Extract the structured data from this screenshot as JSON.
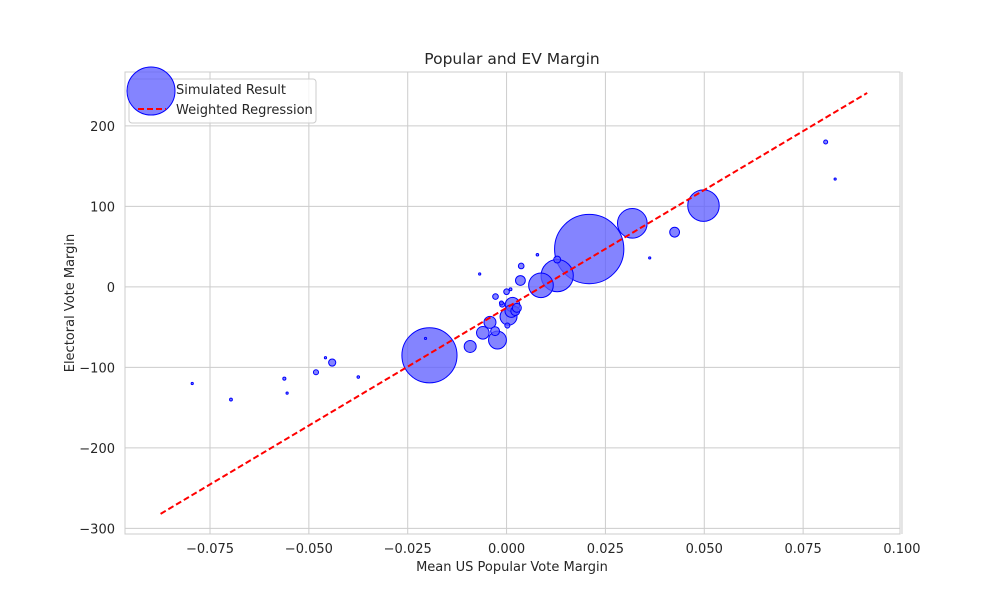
{
  "chart_data": {
    "type": "scatter",
    "title": "Popular and EV Margin",
    "xlabel": "Mean US Popular Vote Margin",
    "ylabel": "Electoral Vote Margin",
    "xlim": [
      -0.0965,
      0.0995
    ],
    "ylim": [
      -307,
      267
    ],
    "xticks": [
      -0.075,
      -0.05,
      -0.025,
      0.0,
      0.025,
      0.05,
      0.075,
      0.1
    ],
    "xtick_labels": [
      "−0.075",
      "−0.050",
      "−0.025",
      "0.000",
      "0.025",
      "0.050",
      "0.075",
      "0.100"
    ],
    "yticks": [
      -300,
      -200,
      -100,
      0,
      100,
      200
    ],
    "ytick_labels": [
      "−300",
      "−200",
      "−100",
      "0",
      "100",
      "200"
    ],
    "grid": true,
    "legend_position": "top-left",
    "colors": {
      "points_fill": "#5b5bff",
      "points_edge": "#0000ff",
      "regression": "#ff0000",
      "grid": "#cccccc",
      "axes_edge": "#cccccc",
      "text": "#262626"
    },
    "series": [
      {
        "name": "Simulated Result",
        "kind": "scatter",
        "points": [
          {
            "x": -0.0795,
            "y": -120,
            "weight": 0.3
          },
          {
            "x": -0.0697,
            "y": -140,
            "weight": 0.5
          },
          {
            "x": -0.0562,
            "y": -114,
            "weight": 0.6
          },
          {
            "x": -0.0555,
            "y": -132,
            "weight": 0.3
          },
          {
            "x": -0.0482,
            "y": -106,
            "weight": 1.6
          },
          {
            "x": -0.0458,
            "y": -88,
            "weight": 0.3
          },
          {
            "x": -0.0441,
            "y": -94,
            "weight": 3.2
          },
          {
            "x": -0.0375,
            "y": -112,
            "weight": 0.4
          },
          {
            "x": -0.0205,
            "y": -64,
            "weight": 0.3
          },
          {
            "x": -0.0195,
            "y": -85,
            "weight": 190
          },
          {
            "x": -0.0092,
            "y": -74,
            "weight": 9
          },
          {
            "x": -0.006,
            "y": -57,
            "weight": 10
          },
          {
            "x": -0.0068,
            "y": 16,
            "weight": 0.3
          },
          {
            "x": -0.0042,
            "y": -44,
            "weight": 9
          },
          {
            "x": -0.0029,
            "y": -55,
            "weight": 5
          },
          {
            "x": -0.0023,
            "y": -66,
            "weight": 20
          },
          {
            "x": -0.0028,
            "y": -12,
            "weight": 2
          },
          {
            "x": -0.0013,
            "y": -20,
            "weight": 1
          },
          {
            "x": -0.0011,
            "y": -22,
            "weight": 1.6
          },
          {
            "x": 0.0,
            "y": -6,
            "weight": 2
          },
          {
            "x": 0.0002,
            "y": -48,
            "weight": 1.6
          },
          {
            "x": 0.0005,
            "y": -37,
            "weight": 18
          },
          {
            "x": 0.001,
            "y": -3,
            "weight": 0.5
          },
          {
            "x": 0.0012,
            "y": -30,
            "weight": 10
          },
          {
            "x": 0.0015,
            "y": -22,
            "weight": 13
          },
          {
            "x": 0.0022,
            "y": -30,
            "weight": 5
          },
          {
            "x": 0.0026,
            "y": -26,
            "weight": 5
          },
          {
            "x": 0.0035,
            "y": 8,
            "weight": 6
          },
          {
            "x": 0.0037,
            "y": 26,
            "weight": 2
          },
          {
            "x": 0.0078,
            "y": 40,
            "weight": 0.4
          },
          {
            "x": 0.0087,
            "y": 2,
            "weight": 38
          },
          {
            "x": 0.0128,
            "y": 34,
            "weight": 3
          },
          {
            "x": 0.0128,
            "y": 14,
            "weight": 65
          },
          {
            "x": 0.0209,
            "y": 47,
            "weight": 300
          },
          {
            "x": 0.0318,
            "y": 79,
            "weight": 55
          },
          {
            "x": 0.0362,
            "y": 36,
            "weight": 0.3
          },
          {
            "x": 0.0425,
            "y": 68,
            "weight": 6
          },
          {
            "x": 0.0498,
            "y": 101,
            "weight": 62
          },
          {
            "x": 0.0807,
            "y": 180,
            "weight": 1
          },
          {
            "x": 0.0831,
            "y": 134,
            "weight": 0.3
          }
        ]
      },
      {
        "name": "Weighted Regression",
        "kind": "line",
        "style": "dashed",
        "x": [
          -0.0875,
          0.0912
        ],
        "y": [
          -282,
          241
        ]
      }
    ]
  }
}
